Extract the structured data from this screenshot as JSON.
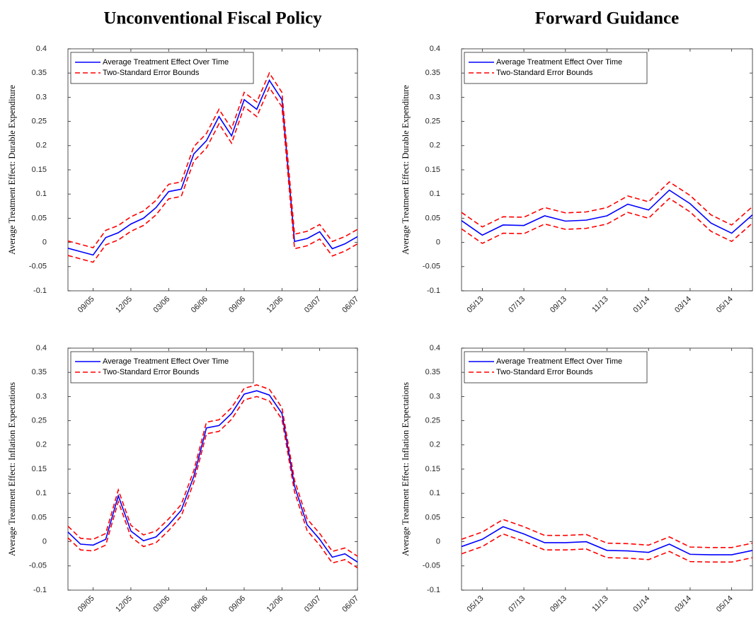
{
  "chart_data": [
    {
      "type": "line",
      "title": "Unconventional Fiscal Policy",
      "ylabel": "Average Treatment Effect: Durable Expenditure",
      "categories": [
        null,
        null,
        "09/05",
        null,
        null,
        "12/05",
        null,
        null,
        "03/06",
        null,
        null,
        "06/06",
        null,
        null,
        "09/06",
        null,
        null,
        "12/06",
        null,
        null,
        "03/07",
        null,
        null,
        "06/07"
      ],
      "series": [
        {
          "name": "Average Treatment Effect Over Time",
          "color": "#0000ff",
          "dashed": false,
          "values": [
            -0.012,
            -0.019,
            -0.026,
            0.01,
            0.02,
            0.038,
            0.05,
            0.072,
            0.105,
            0.11,
            0.183,
            0.21,
            0.26,
            0.22,
            0.295,
            0.275,
            0.335,
            0.295,
            0.002,
            0.008,
            0.022,
            -0.013,
            -0.003,
            0.012
          ]
        },
        {
          "name": "Two-Standard Error Bounds",
          "color": "#ff0000",
          "dashed": true,
          "values": [
            0.003,
            -0.004,
            -0.011,
            0.025,
            0.035,
            0.053,
            0.065,
            0.087,
            0.12,
            0.125,
            0.198,
            0.225,
            0.275,
            0.235,
            0.31,
            0.29,
            0.35,
            0.31,
            0.017,
            0.023,
            0.037,
            0.002,
            0.012,
            0.027
          ]
        },
        {
          "color": "#ff0000",
          "dashed": true,
          "values": [
            -0.027,
            -0.034,
            -0.041,
            -0.005,
            0.005,
            0.023,
            0.035,
            0.057,
            0.09,
            0.095,
            0.168,
            0.195,
            0.245,
            0.205,
            0.28,
            0.26,
            0.32,
            0.28,
            -0.013,
            -0.007,
            0.007,
            -0.028,
            -0.018,
            -0.003
          ]
        }
      ],
      "ylim": [
        -0.1,
        0.4
      ],
      "yticks": [
        -0.1,
        -0.05,
        0,
        0.05,
        0.1,
        0.15,
        0.2,
        0.25,
        0.3,
        0.35,
        0.4
      ],
      "legend": "upper left",
      "grid": false
    },
    {
      "type": "line",
      "title": "Forward Guidance",
      "ylabel": "Average Treatment Effect: Durable Expenditure",
      "categories": [
        null,
        "05/13",
        null,
        "07/13",
        null,
        "09/13",
        null,
        "11/13",
        null,
        "01/14",
        null,
        "03/14",
        null,
        "05/14",
        null
      ],
      "series": [
        {
          "name": "Average Treatment Effect Over Time",
          "color": "#0000ff",
          "dashed": false,
          "values": [
            0.045,
            0.015,
            0.036,
            0.035,
            0.055,
            0.044,
            0.046,
            0.055,
            0.079,
            0.067,
            0.108,
            0.08,
            0.04,
            0.019,
            0.057
          ]
        },
        {
          "name": "Two-Standard Error Bounds",
          "color": "#ff0000",
          "dashed": true,
          "values": [
            0.062,
            0.032,
            0.053,
            0.052,
            0.072,
            0.061,
            0.063,
            0.072,
            0.096,
            0.084,
            0.125,
            0.097,
            0.057,
            0.036,
            0.074
          ]
        },
        {
          "color": "#ff0000",
          "dashed": true,
          "values": [
            0.028,
            -0.002,
            0.019,
            0.018,
            0.038,
            0.027,
            0.029,
            0.038,
            0.062,
            0.05,
            0.091,
            0.063,
            0.023,
            0.002,
            0.04
          ]
        }
      ],
      "ylim": [
        -0.1,
        0.4
      ],
      "yticks": [
        -0.1,
        -0.05,
        0,
        0.05,
        0.1,
        0.15,
        0.2,
        0.25,
        0.3,
        0.35,
        0.4
      ],
      "legend": "upper left",
      "grid": false
    },
    {
      "type": "line",
      "ylabel": "Average Treatment Effect: Inflation Expectations",
      "categories": [
        null,
        null,
        "09/05",
        null,
        null,
        "12/05",
        null,
        null,
        "03/06",
        null,
        null,
        "06/06",
        null,
        null,
        "09/06",
        null,
        null,
        "12/06",
        null,
        null,
        "03/07",
        null,
        null,
        "06/07"
      ],
      "series": [
        {
          "name": "Average Treatment Effect Over Time",
          "color": "#0000ff",
          "dashed": false,
          "values": [
            0.02,
            -0.005,
            -0.007,
            0.005,
            0.095,
            0.022,
            0.002,
            0.01,
            0.035,
            0.065,
            0.135,
            0.235,
            0.24,
            0.265,
            0.305,
            0.312,
            0.303,
            0.265,
            0.115,
            0.035,
            0.005,
            -0.032,
            -0.025,
            -0.042
          ]
        },
        {
          "name": "Two-Standard Error Bounds",
          "color": "#ff0000",
          "dashed": true,
          "values": [
            0.032,
            0.007,
            0.005,
            0.017,
            0.107,
            0.034,
            0.014,
            0.022,
            0.047,
            0.077,
            0.147,
            0.247,
            0.252,
            0.277,
            0.317,
            0.324,
            0.315,
            0.277,
            0.127,
            0.047,
            0.017,
            -0.02,
            -0.013,
            -0.03
          ]
        },
        {
          "color": "#ff0000",
          "dashed": true,
          "values": [
            0.008,
            -0.017,
            -0.019,
            -0.007,
            0.083,
            0.01,
            -0.01,
            -0.002,
            0.023,
            0.053,
            0.123,
            0.223,
            0.228,
            0.253,
            0.293,
            0.3,
            0.291,
            0.253,
            0.103,
            0.023,
            -0.007,
            -0.044,
            -0.037,
            -0.054
          ]
        }
      ],
      "ylim": [
        -0.1,
        0.4
      ],
      "yticks": [
        -0.1,
        -0.05,
        0,
        0.05,
        0.1,
        0.15,
        0.2,
        0.25,
        0.3,
        0.35,
        0.4
      ],
      "legend": "upper left",
      "grid": false
    },
    {
      "type": "line",
      "ylabel": "Average Treatment Effect: Inflation Expectations",
      "categories": [
        null,
        "05/13",
        null,
        "07/13",
        null,
        "09/13",
        null,
        "11/13",
        null,
        "01/14",
        null,
        "03/14",
        null,
        "05/14",
        null
      ],
      "series": [
        {
          "name": "Average Treatment Effect Over Time",
          "color": "#0000ff",
          "dashed": false,
          "values": [
            -0.01,
            0.005,
            0.031,
            0.016,
            -0.002,
            -0.002,
            0.0,
            -0.018,
            -0.019,
            -0.022,
            -0.005,
            -0.026,
            -0.027,
            -0.027,
            -0.018
          ]
        },
        {
          "name": "Two-Standard Error Bounds",
          "color": "#ff0000",
          "dashed": true,
          "values": [
            0.005,
            0.02,
            0.046,
            0.031,
            0.013,
            0.013,
            0.015,
            -0.003,
            -0.004,
            -0.007,
            0.01,
            -0.011,
            -0.012,
            -0.012,
            -0.003
          ]
        },
        {
          "color": "#ff0000",
          "dashed": true,
          "values": [
            -0.025,
            -0.01,
            0.016,
            0.001,
            -0.017,
            -0.017,
            -0.015,
            -0.033,
            -0.034,
            -0.037,
            -0.02,
            -0.041,
            -0.042,
            -0.042,
            -0.033
          ]
        }
      ],
      "ylim": [
        -0.1,
        0.4
      ],
      "yticks": [
        -0.1,
        -0.05,
        0,
        0.05,
        0.1,
        0.15,
        0.2,
        0.25,
        0.3,
        0.35,
        0.4
      ],
      "legend": "upper left",
      "grid": false
    }
  ]
}
